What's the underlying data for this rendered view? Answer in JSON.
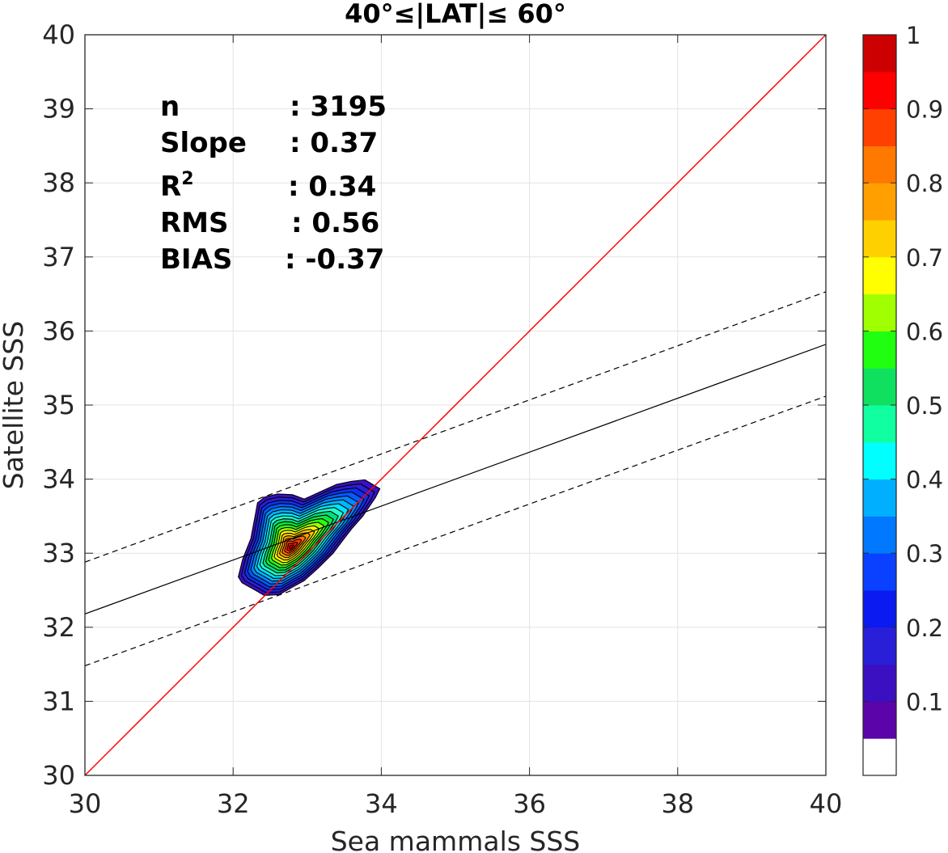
{
  "chart_data": {
    "type": "contour",
    "title": "40°≤|LAT|≤ 60°",
    "xlabel": "Sea mammals SSS",
    "ylabel": "Satellite SSS",
    "xlim": [
      30,
      40
    ],
    "ylim": [
      30,
      40
    ],
    "xticks": [
      "30",
      "32",
      "34",
      "36",
      "38",
      "40"
    ],
    "yticks": [
      "30",
      "31",
      "32",
      "33",
      "34",
      "35",
      "36",
      "37",
      "38",
      "39",
      "40"
    ],
    "grid": true,
    "stats": [
      {
        "label": "n",
        "value": ": 3195"
      },
      {
        "label": "Slope",
        "value": ": 0.37"
      },
      {
        "label": "R",
        "sup": "2",
        "value": ": 0.34"
      },
      {
        "label": "RMS",
        "value": ": 0.56"
      },
      {
        "label": "BIAS",
        "value": ": -0.37"
      }
    ],
    "lines": {
      "identity": {
        "x": [
          30,
          40
        ],
        "y": [
          30,
          40
        ],
        "color": "#ff0000"
      },
      "regression": {
        "x": [
          30,
          40
        ],
        "y": [
          32.18,
          35.82
        ],
        "color": "#000000"
      },
      "upper_bound": {
        "x": [
          30,
          40
        ],
        "y": [
          32.88,
          36.53
        ],
        "style": "dashed"
      },
      "lower_bound": {
        "x": [
          30,
          40
        ],
        "y": [
          31.48,
          35.12
        ],
        "style": "dashed"
      }
    },
    "density": {
      "center": [
        32.78,
        33.08
      ],
      "levels": [
        0.05,
        0.1,
        0.15,
        0.2,
        0.25,
        0.3,
        0.35,
        0.4,
        0.45,
        0.5,
        0.55,
        0.6,
        0.65,
        0.7,
        0.75,
        0.8,
        0.85,
        0.9,
        0.95
      ],
      "level_colors": [
        "#3a10c0",
        "#2a1fd8",
        "#1030f0",
        "#005cff",
        "#0088ff",
        "#00b4ff",
        "#00e4ff",
        "#20ffc8",
        "#00e080",
        "#10e840",
        "#30ff10",
        "#a0ff00",
        "#ffff00",
        "#ffd000",
        "#ffa000",
        "#ff7000",
        "#ff4000",
        "#ff1000",
        "#d00000"
      ],
      "outline_xy": [
        [
          32.07,
          32.68
        ],
        [
          32.13,
          32.92
        ],
        [
          32.24,
          33.2
        ],
        [
          32.3,
          33.52
        ],
        [
          32.33,
          33.68
        ],
        [
          32.43,
          33.76
        ],
        [
          32.6,
          33.8
        ],
        [
          32.8,
          33.79
        ],
        [
          32.96,
          33.73
        ],
        [
          33.2,
          33.84
        ],
        [
          33.4,
          33.93
        ],
        [
          33.6,
          33.97
        ],
        [
          33.78,
          33.99
        ],
        [
          33.98,
          33.87
        ],
        [
          33.92,
          33.75
        ],
        [
          33.75,
          33.5
        ],
        [
          33.6,
          33.33
        ],
        [
          33.5,
          33.2
        ],
        [
          33.35,
          33.0
        ],
        [
          33.15,
          32.8
        ],
        [
          32.96,
          32.63
        ],
        [
          32.78,
          32.53
        ],
        [
          32.62,
          32.44
        ],
        [
          32.42,
          32.43
        ],
        [
          32.3,
          32.5
        ],
        [
          32.12,
          32.6
        ]
      ]
    },
    "colorbar": {
      "ticks": [
        "0.1",
        "0.2",
        "0.3",
        "0.4",
        "0.5",
        "0.6",
        "0.7",
        "0.8",
        "0.9",
        "1"
      ],
      "range": [
        0,
        1
      ],
      "band_edges": [
        0,
        0.05,
        0.1,
        0.15,
        0.2,
        0.25,
        0.3,
        0.35,
        0.4,
        0.45,
        0.5,
        0.55,
        0.6,
        0.65,
        0.7,
        0.75,
        0.8,
        0.85,
        0.9,
        0.95,
        1
      ],
      "band_colors": [
        "#ffffff",
        "#5a04aa",
        "#3a10c0",
        "#2a1fd8",
        "#0a1af0",
        "#0a40ff",
        "#0078ff",
        "#00b0ff",
        "#00ffff",
        "#10ffa0",
        "#10e060",
        "#20ff10",
        "#a0ff00",
        "#ffff00",
        "#ffd000",
        "#ffa000",
        "#ff7800",
        "#ff4000",
        "#ff0000",
        "#cc0000",
        "#800000"
      ]
    }
  }
}
